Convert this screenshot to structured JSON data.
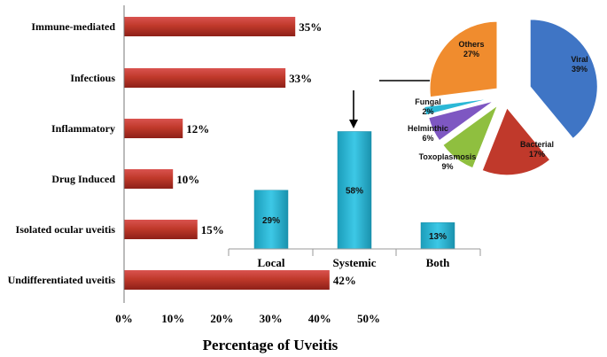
{
  "chart_data": [
    {
      "type": "bar",
      "orientation": "horizontal",
      "title": "",
      "categories": [
        "Immune-mediated",
        "Infectious",
        "Inflammatory",
        "Drug Induced",
        "Isolated ocular uveitis",
        "Undifferentiated uveitis"
      ],
      "values": [
        35,
        33,
        12,
        10,
        15,
        42
      ],
      "value_labels": [
        "35%",
        "33%",
        "12%",
        "10%",
        "15%",
        "42%"
      ],
      "xlabel": "Percentage of Uveitis",
      "ylabel": "",
      "xlim": [
        0,
        50
      ],
      "x_ticks": [
        0,
        10,
        20,
        30,
        40,
        50
      ],
      "x_tick_labels": [
        "0%",
        "10%",
        "20%",
        "30%",
        "40%",
        "50%"
      ],
      "grid": false,
      "color": "#C0392B"
    },
    {
      "type": "bar",
      "orientation": "vertical",
      "title": "",
      "categories": [
        "Local",
        "Systemic",
        "Both"
      ],
      "values": [
        29,
        58,
        13
      ],
      "value_labels": [
        "29%",
        "58%",
        "13%"
      ],
      "grid": false,
      "color": "#2BB8D6"
    },
    {
      "type": "pie",
      "title": "",
      "exploded": true,
      "slices": [
        {
          "name": "Viral",
          "value": 39,
          "label": "39%",
          "color": "#3F75C5"
        },
        {
          "name": "Bacterial",
          "value": 17,
          "label": "17%",
          "color": "#C0392B"
        },
        {
          "name": "Toxoplasmosis",
          "value": 9,
          "label": "9%",
          "color": "#8FBF3F"
        },
        {
          "name": "Helminthic",
          "value": 6,
          "label": "6%",
          "color": "#7E57C2"
        },
        {
          "name": "Fungal",
          "value": 2,
          "label": "2%",
          "color": "#2BB8D6"
        },
        {
          "name": "Others",
          "value": 27,
          "label": "27%",
          "color": "#F08C2E"
        }
      ]
    }
  ]
}
